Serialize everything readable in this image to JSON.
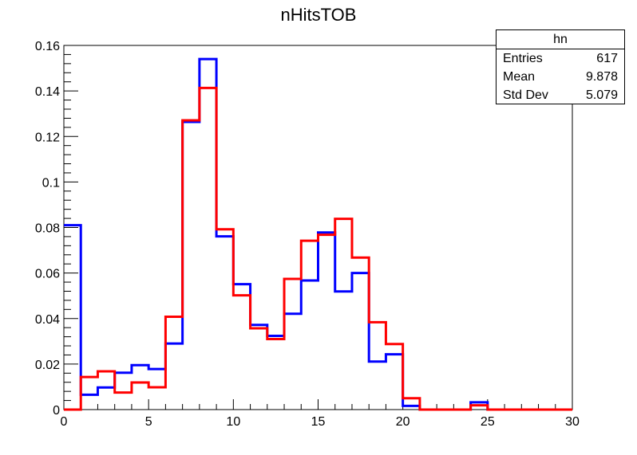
{
  "chart_data": {
    "type": "histogram",
    "title": "nHitsTOB",
    "xlabel": "",
    "ylabel": "",
    "xlim": [
      0,
      30
    ],
    "ylim": [
      0,
      0.16
    ],
    "bin_edges": [
      0,
      1,
      2,
      3,
      4,
      5,
      6,
      7,
      8,
      9,
      10,
      11,
      12,
      13,
      14,
      15,
      16,
      17,
      18,
      19,
      20,
      21,
      22,
      23,
      24,
      25,
      26,
      27,
      28,
      29,
      30
    ],
    "x_ticks": [
      0,
      5,
      10,
      15,
      20,
      25,
      30
    ],
    "y_ticks": [
      0,
      0.02,
      0.04,
      0.06,
      0.08,
      0.1,
      0.12,
      0.14,
      0.16
    ],
    "grid": false,
    "series": [
      {
        "color": "#0000ff",
        "values": [
          0.081,
          0.0065,
          0.0097,
          0.0162,
          0.0195,
          0.0178,
          0.029,
          0.1264,
          0.154,
          0.0761,
          0.0551,
          0.0372,
          0.0324,
          0.0421,
          0.0567,
          0.0778,
          0.0519,
          0.06,
          0.0211,
          0.0243,
          0.0016,
          0,
          0,
          0,
          0.0032,
          0,
          0,
          0,
          0,
          0
        ]
      },
      {
        "color": "#ff0000",
        "values": [
          0,
          0.0143,
          0.0168,
          0.0075,
          0.0119,
          0.0098,
          0.0408,
          0.1271,
          0.1413,
          0.0792,
          0.0502,
          0.0357,
          0.031,
          0.0574,
          0.0742,
          0.0768,
          0.0838,
          0.0668,
          0.0384,
          0.0288,
          0.005,
          0,
          0,
          0,
          0.0019,
          0,
          0,
          0,
          0,
          0
        ]
      }
    ],
    "stats_box": {
      "header": "hn",
      "entries_label": "Entries",
      "entries": "617",
      "mean_label": "Mean",
      "mean": "9.878",
      "stddev_label": "Std Dev",
      "stddev": "5.079"
    }
  }
}
